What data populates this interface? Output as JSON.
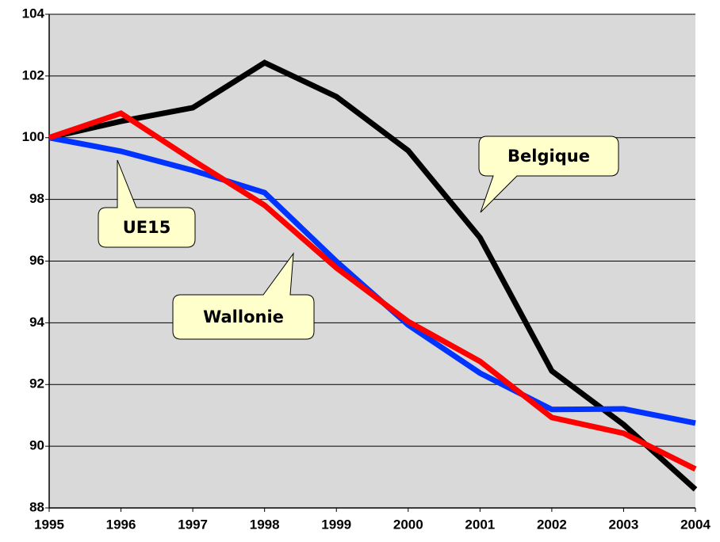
{
  "chart_data": {
    "type": "line",
    "x": [
      1995,
      1996,
      1997,
      1998,
      1999,
      2000,
      2001,
      2002,
      2003,
      2004
    ],
    "xlim": [
      1995,
      2004
    ],
    "xticks": [
      1995,
      1996,
      1997,
      1998,
      1999,
      2000,
      2001,
      2002,
      2003,
      2004
    ],
    "ylim": [
      88,
      104
    ],
    "yticks": [
      88,
      90,
      92,
      94,
      96,
      98,
      100,
      102,
      104
    ],
    "grid": true,
    "series": [
      {
        "name": "Belgique",
        "color": "#000000",
        "values": [
          100,
          100.53,
          100.97,
          102.43,
          101.33,
          99.58,
          96.76,
          92.44,
          90.7,
          88.6
        ]
      },
      {
        "name": "UE15",
        "color": "#0033ff",
        "values": [
          100,
          99.56,
          98.94,
          98.22,
          95.99,
          93.93,
          92.37,
          91.19,
          91.21,
          90.75
        ]
      },
      {
        "name": "Wallonie",
        "color": "#ff0000",
        "values": [
          100,
          100.79,
          99.27,
          97.81,
          95.78,
          94.04,
          92.75,
          90.93,
          90.42,
          89.26
        ]
      }
    ]
  }
}
